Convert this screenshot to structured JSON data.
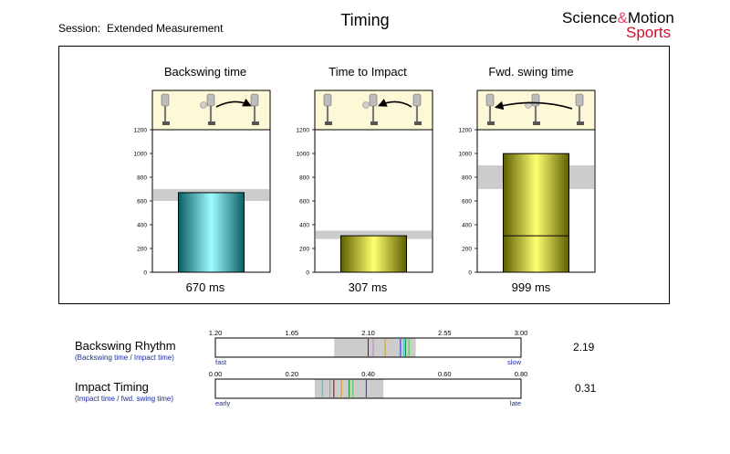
{
  "header": {
    "session_label": "Session:",
    "session_value": "Extended Measurement",
    "title": "Timing",
    "brand_science": "Science",
    "brand_amp": "&",
    "brand_motion": "Motion",
    "brand_sports": "Sports"
  },
  "colors": {
    "cyan_bar": "#1fc8c8",
    "yellow_bar": "#d8d800",
    "band": "#cccccc",
    "icon_bg": "#fdf9d6",
    "brand_red": "#d4102c",
    "legend_blue": "#1a2aa0"
  },
  "chart_data": [
    {
      "type": "bar",
      "title": "Backswing time",
      "ylim": [
        0,
        1200
      ],
      "yticks": [
        "0",
        "200",
        "400",
        "600",
        "800",
        "1000",
        "1200"
      ],
      "values": [
        670
      ],
      "reference_band": [
        600,
        700
      ],
      "value_label": "670 ms",
      "color": "cyan",
      "icon": "golfer-backswing-icon",
      "arrow": "right"
    },
    {
      "type": "bar",
      "title": "Time to Impact",
      "ylim": [
        0,
        1200
      ],
      "yticks": [
        "0",
        "200",
        "400",
        "600",
        "800",
        "1000",
        "1200"
      ],
      "values": [
        307
      ],
      "reference_band": [
        280,
        350
      ],
      "value_label": "307 ms",
      "color": "yellow",
      "icon": "golfer-impact-icon",
      "arrow": "left"
    },
    {
      "type": "bar",
      "title": "Fwd. swing time",
      "ylim": [
        0,
        1200
      ],
      "yticks": [
        "0",
        "200",
        "400",
        "600",
        "800",
        "1000",
        "1200"
      ],
      "values": [
        999
      ],
      "inner_divider": 307,
      "reference_band": [
        700,
        900
      ],
      "value_label": "999 ms",
      "color": "yellow",
      "icon": "golfer-fullswing-icon",
      "arrow": "left"
    }
  ],
  "rhythm": {
    "backswing": {
      "title": "Backswing Rhythm",
      "subtitle": "(Backswing time / Impact time)",
      "value": "2.19",
      "ticks": [
        "1.20",
        "1.65",
        "2.10",
        "2.55",
        "3.00"
      ],
      "min": 1.2,
      "max": 3.0,
      "band": [
        1.9,
        2.38
      ],
      "markers": [
        {
          "v": 2.1,
          "c": "#8b1a1a"
        },
        {
          "v": 2.13,
          "c": "#c77dd8"
        },
        {
          "v": 2.2,
          "c": "#d8a020"
        },
        {
          "v": 2.29,
          "c": "#3a3ad8"
        },
        {
          "v": 2.31,
          "c": "#40c8d0"
        },
        {
          "v": 2.32,
          "c": "#1f8f2f"
        },
        {
          "v": 2.34,
          "c": "#4cd04c"
        }
      ],
      "left_label": "fast",
      "right_label": "slow"
    },
    "impact": {
      "title": "Impact Timing",
      "subtitle": "(Impact time / fwd. swing time)",
      "value": "0.31",
      "ticks": [
        "0.00",
        "0.20",
        "0.40",
        "0.60",
        "0.80"
      ],
      "min": 0.0,
      "max": 0.8,
      "band": [
        0.26,
        0.44
      ],
      "markers": [
        {
          "v": 0.28,
          "c": "#40c8d0"
        },
        {
          "v": 0.3,
          "c": "#c77dd8"
        },
        {
          "v": 0.31,
          "c": "#8b1a1a"
        },
        {
          "v": 0.33,
          "c": "#d8a020"
        },
        {
          "v": 0.35,
          "c": "#1f8f2f"
        },
        {
          "v": 0.36,
          "c": "#4cd04c"
        },
        {
          "v": 0.395,
          "c": "#3a3ad8"
        }
      ],
      "left_label": "early",
      "right_label": "late"
    }
  }
}
